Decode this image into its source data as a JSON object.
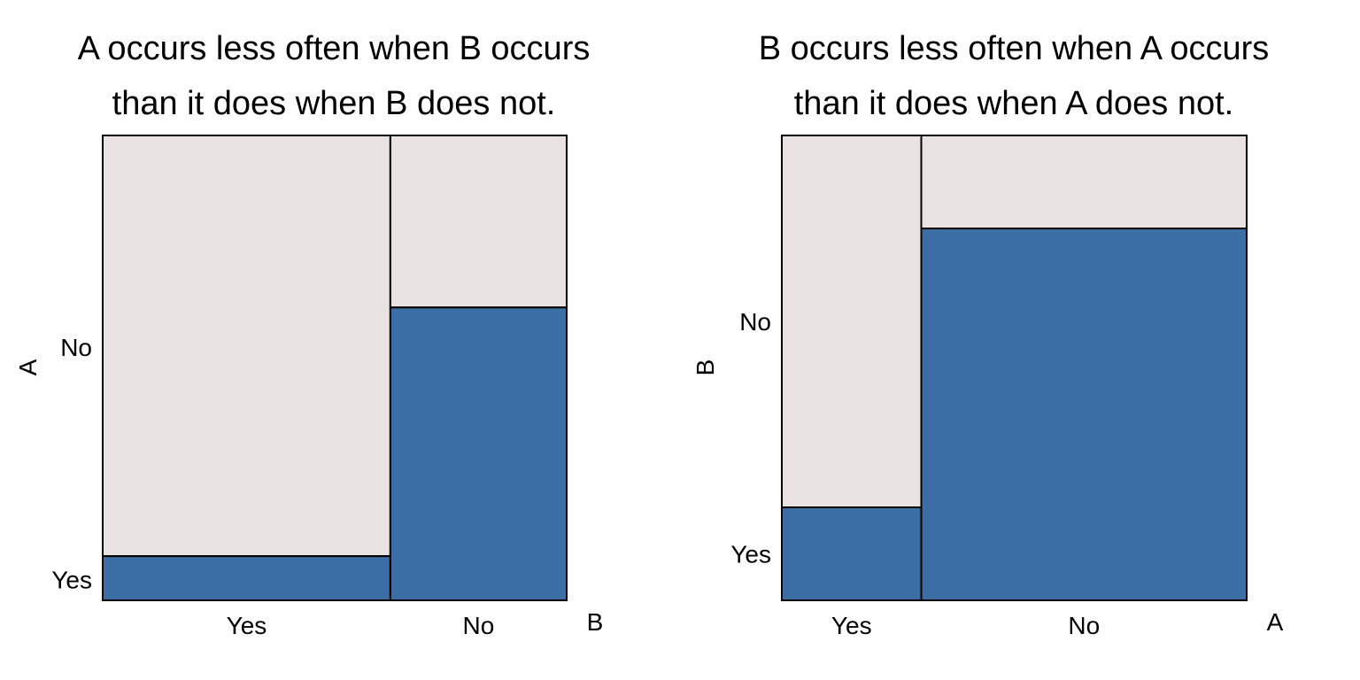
{
  "colors": {
    "yes": "#3a6ea5",
    "no": "#e8e2e2",
    "stroke": "#000000"
  },
  "chart_data": [
    {
      "type": "mosaic",
      "title_lines": [
        "A occurs less often when B occurs",
        "than it does when B does not."
      ],
      "xlabel": "B",
      "ylabel": "A",
      "x_categories": [
        "Yes",
        "No"
      ],
      "y_categories": [
        "Yes",
        "No"
      ],
      "x_proportions": [
        0.62,
        0.38
      ],
      "y_yes_proportion_within_x": [
        0.095,
        0.63
      ],
      "y_tick_positions": [
        0.045,
        0.545
      ]
    },
    {
      "type": "mosaic",
      "title_lines": [
        "B occurs less often when A occurs",
        "than it does when A does not."
      ],
      "xlabel": "A",
      "ylabel": "B",
      "x_categories": [
        "Yes",
        "No"
      ],
      "y_categories": [
        "Yes",
        "No"
      ],
      "x_proportions": [
        0.3,
        0.7
      ],
      "y_yes_proportion_within_x": [
        0.2,
        0.8
      ],
      "y_tick_positions": [
        0.1,
        0.6
      ]
    }
  ]
}
